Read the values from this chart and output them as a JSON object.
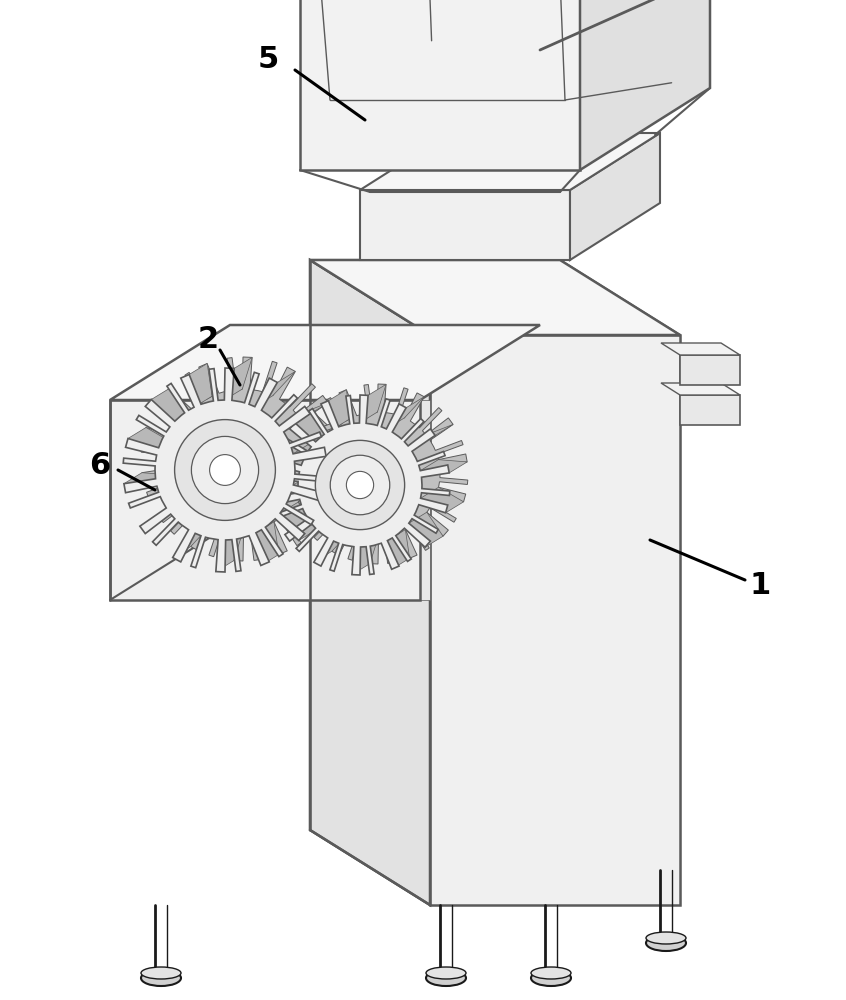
{
  "bg_color": "#ffffff",
  "lc": "#5a5a5a",
  "dlc": "#1a1a1a",
  "face_front": "#efefef",
  "face_side": "#d8d8d8",
  "face_top": "#f6f6f6",
  "face_dark": "#c8c8c8",
  "gear_face": "#eeeeee",
  "gear_back": "#cccccc",
  "gear_side": "#bbbbbb",
  "figsize": [
    8.46,
    10.0
  ],
  "dpi": 100
}
